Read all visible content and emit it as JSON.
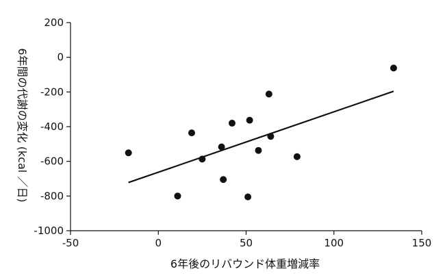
{
  "chart_data": {
    "type": "scatter",
    "title": "",
    "xlabel": "6年後のリバウンド体重増減率",
    "ylabel": "6年間の代謝の変化 (kcal ／日)",
    "xlim": [
      -50,
      150
    ],
    "ylim": [
      -1000,
      200
    ],
    "xticks": [
      -50,
      0,
      50,
      100,
      150
    ],
    "xtick_labels": [
      "-50",
      "0",
      "50",
      "100",
      "150"
    ],
    "yticks": [
      200,
      0,
      -200,
      -400,
      -600,
      -800,
      -1000
    ],
    "ytick_labels": [
      "200",
      "0",
      "-200",
      "-400",
      "-600",
      "-800",
      "-1000"
    ],
    "grid": false,
    "points": [
      {
        "x": -17,
        "y": -551
      },
      {
        "x": 11,
        "y": -800
      },
      {
        "x": 19,
        "y": -436
      },
      {
        "x": 25,
        "y": -587
      },
      {
        "x": 36,
        "y": -517
      },
      {
        "x": 37,
        "y": -705
      },
      {
        "x": 42,
        "y": -380
      },
      {
        "x": 51,
        "y": -805
      },
      {
        "x": 52,
        "y": -363
      },
      {
        "x": 57,
        "y": -537
      },
      {
        "x": 63,
        "y": -212
      },
      {
        "x": 64,
        "y": -456
      },
      {
        "x": 79,
        "y": -573
      },
      {
        "x": 134,
        "y": -62
      }
    ],
    "trendline": {
      "x": [
        -17,
        134
      ],
      "y": [
        -722,
        -196
      ]
    },
    "colors": {
      "marker": "#111111",
      "line": "#111111",
      "axis": "#111111"
    }
  }
}
